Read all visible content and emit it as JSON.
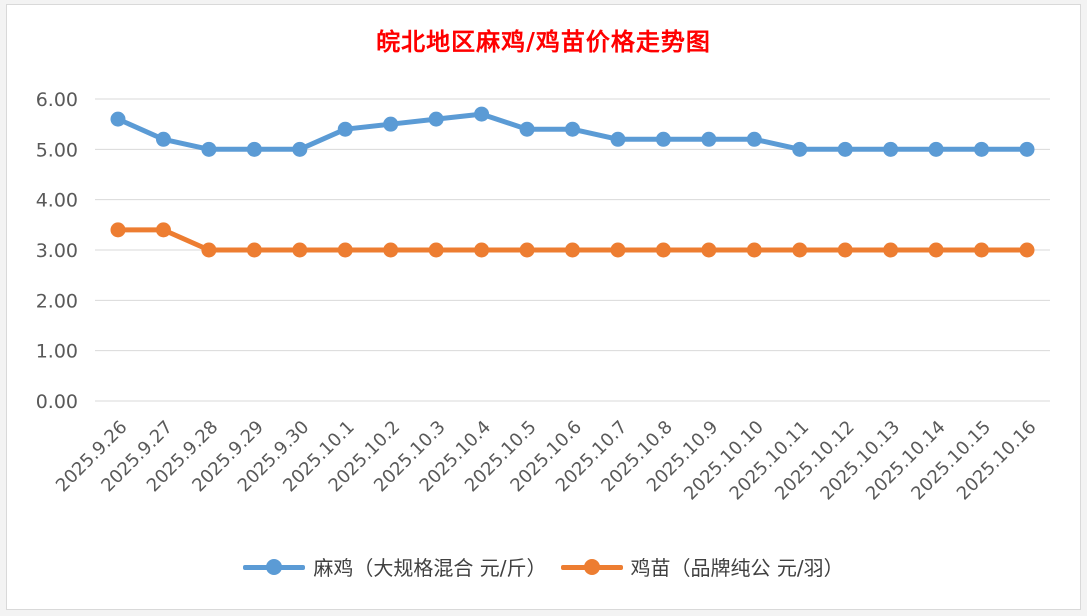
{
  "chart_data": {
    "type": "line",
    "title": "皖北地区麻鸡/鸡苗价格走势图",
    "categories": [
      "2025.9.26",
      "2025.9.27",
      "2025.9.28",
      "2025.9.29",
      "2025.9.30",
      "2025.10.1",
      "2025.10.2",
      "2025.10.3",
      "2025.10.4",
      "2025.10.5",
      "2025.10.6",
      "2025.10.7",
      "2025.10.8",
      "2025.10.9",
      "2025.10.10",
      "2025.10.11",
      "2025.10.12",
      "2025.10.13",
      "2025.10.14",
      "2025.10.15",
      "2025.10.16"
    ],
    "series": [
      {
        "name": "麻鸡（大规格混合 元/斤）",
        "color": "#5b9bd5",
        "values": [
          5.6,
          5.2,
          5.0,
          5.0,
          5.0,
          5.4,
          5.5,
          5.6,
          5.7,
          5.4,
          5.4,
          5.2,
          5.2,
          5.2,
          5.2,
          5.0,
          5.0,
          5.0,
          5.0,
          5.0,
          5.0
        ]
      },
      {
        "name": "鸡苗（品牌纯公 元/羽）",
        "color": "#ed7d31",
        "values": [
          3.4,
          3.4,
          3.0,
          3.0,
          3.0,
          3.0,
          3.0,
          3.0,
          3.0,
          3.0,
          3.0,
          3.0,
          3.0,
          3.0,
          3.0,
          3.0,
          3.0,
          3.0,
          3.0,
          3.0,
          3.0
        ]
      }
    ],
    "ylim": [
      0,
      6
    ],
    "yticks": [
      "0.00",
      "1.00",
      "2.00",
      "3.00",
      "4.00",
      "5.00",
      "6.00"
    ],
    "xlabel": "",
    "ylabel": "",
    "grid": "horizontal",
    "legend_position": "bottom"
  }
}
